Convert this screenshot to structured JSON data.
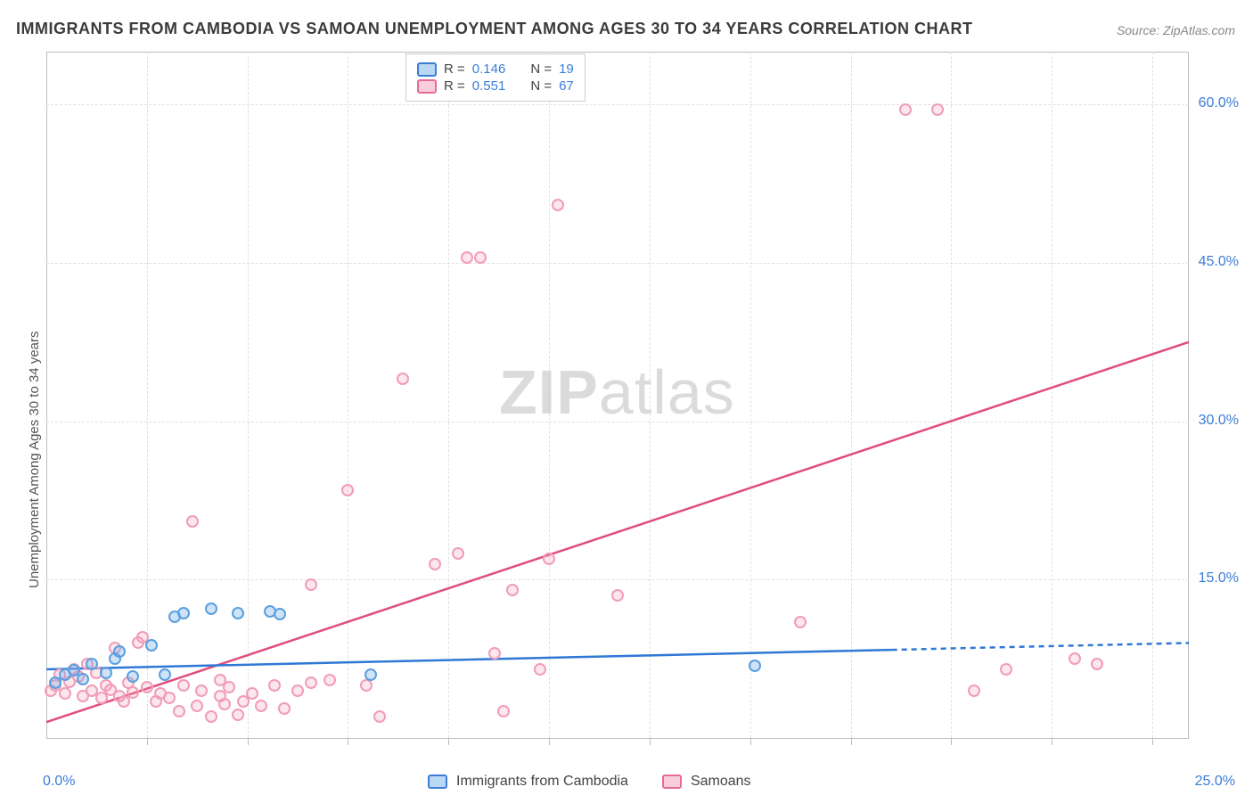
{
  "chart": {
    "type": "scatter",
    "title": "IMMIGRANTS FROM CAMBODIA VS SAMOAN UNEMPLOYMENT AMONG AGES 30 TO 34 YEARS CORRELATION CHART",
    "source": "Source: ZipAtlas.com",
    "ylabel": "Unemployment Among Ages 30 to 34 years",
    "watermark": "ZIPatlas",
    "background_color": "#ffffff",
    "grid_color": "#e0e0e0",
    "axis_color": "#bdbdbd",
    "tick_color": "#3b7dd8",
    "title_color": "#3b3b3b",
    "title_fontsize": 18,
    "tick_fontsize": 16,
    "ylabel_fontsize": 15,
    "xlim": [
      0,
      25
    ],
    "ylim": [
      0,
      65
    ],
    "x_origin_label": "0.0%",
    "x_end_label": "25.0%",
    "yticks": [
      {
        "v": 15,
        "label": "15.0%"
      },
      {
        "v": 30,
        "label": "30.0%"
      },
      {
        "v": 45,
        "label": "45.0%"
      },
      {
        "v": 60,
        "label": "60.0%"
      }
    ],
    "xgrid_positions": [
      2.2,
      4.4,
      6.6,
      8.8,
      11.0,
      13.2,
      15.4,
      17.6,
      19.8,
      22.0,
      24.2
    ],
    "legend_top": [
      {
        "swatch": "blue",
        "r_label": "R =",
        "r": "0.146",
        "n_label": "N =",
        "n": "19"
      },
      {
        "swatch": "pink",
        "r_label": "R =",
        "r": "0.551",
        "n_label": "N =",
        "n": "67"
      }
    ],
    "legend_bottom": [
      {
        "swatch": "blue",
        "label": "Immigrants from Cambodia"
      },
      {
        "swatch": "pink",
        "label": "Samoans"
      }
    ],
    "series": {
      "blue": {
        "color_fill": "rgba(118,175,232,0.35)",
        "color_stroke": "#5a9fe0",
        "trend_color": "#2f78d6",
        "trend_width": 2.5,
        "trend": {
          "x1": 0,
          "y1": 6.5,
          "x2": 25,
          "y2": 9.0,
          "solid_until_x": 18.5
        },
        "points": [
          {
            "x": 0.2,
            "y": 5.2
          },
          {
            "x": 0.4,
            "y": 6.0
          },
          {
            "x": 0.6,
            "y": 6.4
          },
          {
            "x": 0.8,
            "y": 5.6
          },
          {
            "x": 1.0,
            "y": 7.0
          },
          {
            "x": 1.3,
            "y": 6.2
          },
          {
            "x": 1.5,
            "y": 7.5
          },
          {
            "x": 1.6,
            "y": 8.2
          },
          {
            "x": 1.9,
            "y": 5.8
          },
          {
            "x": 2.3,
            "y": 8.8
          },
          {
            "x": 2.6,
            "y": 6.0
          },
          {
            "x": 2.8,
            "y": 11.5
          },
          {
            "x": 3.0,
            "y": 11.8
          },
          {
            "x": 3.6,
            "y": 12.2
          },
          {
            "x": 4.2,
            "y": 11.8
          },
          {
            "x": 4.9,
            "y": 12.0
          },
          {
            "x": 5.1,
            "y": 11.7
          },
          {
            "x": 7.1,
            "y": 6.0
          },
          {
            "x": 15.5,
            "y": 6.8
          }
        ]
      },
      "pink": {
        "color_fill": "rgba(244,158,184,0.25)",
        "color_stroke": "#f19cb7",
        "trend_color": "#e14d7b",
        "trend_width": 2.5,
        "trend": {
          "x1": 0,
          "y1": 1.5,
          "x2": 25,
          "y2": 37.5,
          "solid_until_x": 25
        },
        "points": [
          {
            "x": 0.1,
            "y": 4.5
          },
          {
            "x": 0.2,
            "y": 5.0
          },
          {
            "x": 0.3,
            "y": 6.0
          },
          {
            "x": 0.4,
            "y": 4.2
          },
          {
            "x": 0.5,
            "y": 5.3
          },
          {
            "x": 0.6,
            "y": 6.5
          },
          {
            "x": 0.7,
            "y": 5.8
          },
          {
            "x": 0.8,
            "y": 4.0
          },
          {
            "x": 0.9,
            "y": 7.0
          },
          {
            "x": 1.0,
            "y": 4.5
          },
          {
            "x": 1.1,
            "y": 6.2
          },
          {
            "x": 1.2,
            "y": 3.8
          },
          {
            "x": 1.3,
            "y": 5.0
          },
          {
            "x": 1.4,
            "y": 4.6
          },
          {
            "x": 1.5,
            "y": 8.5
          },
          {
            "x": 1.6,
            "y": 4.0
          },
          {
            "x": 1.7,
            "y": 3.5
          },
          {
            "x": 1.8,
            "y": 5.2
          },
          {
            "x": 1.9,
            "y": 4.3
          },
          {
            "x": 2.0,
            "y": 9.0
          },
          {
            "x": 2.1,
            "y": 9.5
          },
          {
            "x": 2.2,
            "y": 4.8
          },
          {
            "x": 2.4,
            "y": 3.5
          },
          {
            "x": 2.5,
            "y": 4.2
          },
          {
            "x": 2.7,
            "y": 3.8
          },
          {
            "x": 2.9,
            "y": 2.5
          },
          {
            "x": 3.0,
            "y": 5.0
          },
          {
            "x": 3.2,
            "y": 20.5
          },
          {
            "x": 3.3,
            "y": 3.0
          },
          {
            "x": 3.4,
            "y": 4.5
          },
          {
            "x": 3.6,
            "y": 2.0
          },
          {
            "x": 3.8,
            "y": 4.0
          },
          {
            "x": 3.8,
            "y": 5.5
          },
          {
            "x": 3.9,
            "y": 3.2
          },
          {
            "x": 4.0,
            "y": 4.8
          },
          {
            "x": 4.2,
            "y": 2.2
          },
          {
            "x": 4.3,
            "y": 3.5
          },
          {
            "x": 4.5,
            "y": 4.2
          },
          {
            "x": 4.7,
            "y": 3.0
          },
          {
            "x": 5.0,
            "y": 5.0
          },
          {
            "x": 5.2,
            "y": 2.8
          },
          {
            "x": 5.5,
            "y": 4.5
          },
          {
            "x": 5.8,
            "y": 5.2
          },
          {
            "x": 5.8,
            "y": 14.5
          },
          {
            "x": 6.2,
            "y": 5.5
          },
          {
            "x": 6.6,
            "y": 23.5
          },
          {
            "x": 7.0,
            "y": 5.0
          },
          {
            "x": 7.3,
            "y": 2.0
          },
          {
            "x": 7.8,
            "y": 34.0
          },
          {
            "x": 8.5,
            "y": 16.5
          },
          {
            "x": 9.0,
            "y": 17.5
          },
          {
            "x": 9.2,
            "y": 45.5
          },
          {
            "x": 9.5,
            "y": 45.5
          },
          {
            "x": 9.8,
            "y": 8.0
          },
          {
            "x": 10.0,
            "y": 2.5
          },
          {
            "x": 10.2,
            "y": 14.0
          },
          {
            "x": 10.8,
            "y": 6.5
          },
          {
            "x": 11.0,
            "y": 17.0
          },
          {
            "x": 11.2,
            "y": 50.5
          },
          {
            "x": 12.5,
            "y": 13.5
          },
          {
            "x": 16.5,
            "y": 11.0
          },
          {
            "x": 18.8,
            "y": 59.5
          },
          {
            "x": 19.5,
            "y": 59.5
          },
          {
            "x": 20.3,
            "y": 4.5
          },
          {
            "x": 21.0,
            "y": 6.5
          },
          {
            "x": 22.5,
            "y": 7.5
          },
          {
            "x": 23.0,
            "y": 7.0
          }
        ]
      }
    }
  }
}
